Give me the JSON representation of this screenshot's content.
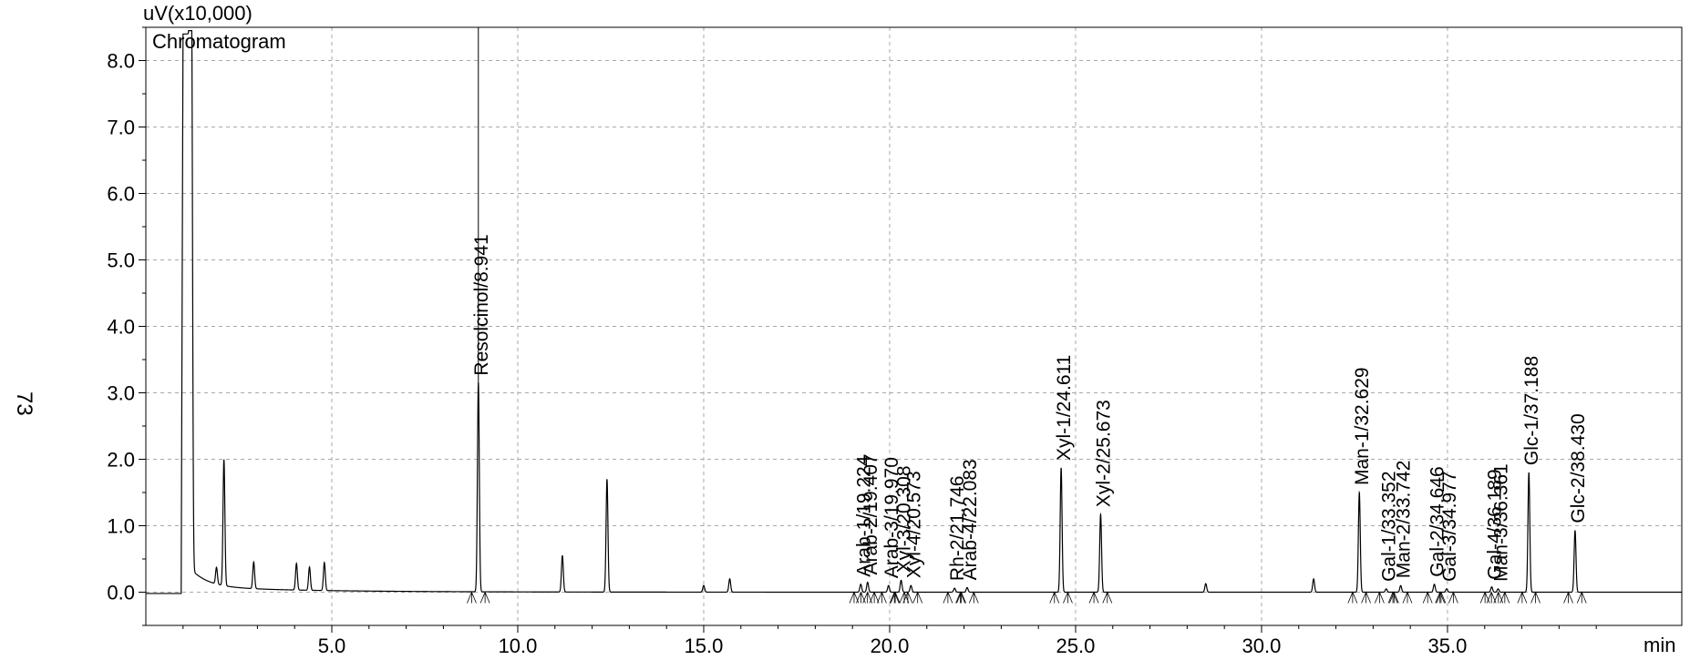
{
  "page_number": "73",
  "chart_data": {
    "type": "line",
    "title": "Chromatogram",
    "ylabel": "uV(x10,000)",
    "xlabel": "min",
    "xlim": [
      0,
      41.3
    ],
    "ylim": [
      -0.5,
      8.5
    ],
    "grid": true,
    "x_ticks": [
      5,
      10,
      15,
      20,
      25,
      30,
      35
    ],
    "x_tick_labels": [
      "5.0",
      "10.0",
      "15.0",
      "20.0",
      "25.0",
      "30.0",
      "35.0"
    ],
    "y_ticks": [
      0,
      1,
      2,
      3,
      4,
      5,
      6,
      7,
      8
    ],
    "y_tick_labels": [
      "0.0",
      "1.0",
      "2.0",
      "3.0",
      "4.0",
      "5.0",
      "6.0",
      "7.0",
      "8.0"
    ],
    "peaks": [
      {
        "label": "Resolcinol/8.941",
        "rt": 8.941,
        "height": 3.15
      },
      {
        "label": "Arab-1/19.224",
        "rt": 19.224,
        "height": 0.12
      },
      {
        "label": "Arab-2/19.407",
        "rt": 19.407,
        "height": 0.15
      },
      {
        "label": "Arab-3/19.970",
        "rt": 19.97,
        "height": 0.1
      },
      {
        "label": "Xyl-3/20.308",
        "rt": 20.308,
        "height": 0.18
      },
      {
        "label": "Xyl-4/20.573",
        "rt": 20.573,
        "height": 0.1
      },
      {
        "label": "Rh-2/21.746",
        "rt": 21.746,
        "height": 0.06
      },
      {
        "label": "Arab-4/22.083",
        "rt": 22.083,
        "height": 0.07
      },
      {
        "label": "Xyl-1/24.611",
        "rt": 24.611,
        "height": 1.87
      },
      {
        "label": "Xyl-2/25.673",
        "rt": 25.673,
        "height": 1.17
      },
      {
        "label": "Man-1/32.629",
        "rt": 32.629,
        "height": 1.5
      },
      {
        "label": "Gal-1/33.352",
        "rt": 33.352,
        "height": 0.05
      },
      {
        "label": "Man-2/33.742",
        "rt": 33.742,
        "height": 0.1
      },
      {
        "label": "Gal-2/34.646",
        "rt": 34.646,
        "height": 0.12
      },
      {
        "label": "Gal-3/34.977",
        "rt": 34.977,
        "height": 0.05
      },
      {
        "label": "Gal-4/36.189",
        "rt": 36.189,
        "height": 0.08
      },
      {
        "label": "Man-3/36.361",
        "rt": 36.361,
        "height": 0.05
      },
      {
        "label": "Glc-1/37.188",
        "rt": 37.188,
        "height": 1.8
      },
      {
        "label": "Glc-2/38.430",
        "rt": 38.43,
        "height": 0.93
      }
    ],
    "unlabeled_peaks": [
      {
        "rt": 1.23,
        "height": 8.4
      },
      {
        "rt": 1.9,
        "height": 0.25
      },
      {
        "rt": 2.1,
        "height": 1.9
      },
      {
        "rt": 2.9,
        "height": 0.4
      },
      {
        "rt": 4.05,
        "height": 0.4
      },
      {
        "rt": 4.4,
        "height": 0.35
      },
      {
        "rt": 4.8,
        "height": 0.42
      },
      {
        "rt": 11.2,
        "height": 0.55
      },
      {
        "rt": 12.4,
        "height": 1.7
      },
      {
        "rt": 15.0,
        "height": 0.1
      },
      {
        "rt": 15.7,
        "height": 0.2
      },
      {
        "rt": 28.5,
        "height": 0.13
      },
      {
        "rt": 31.4,
        "height": 0.2
      }
    ]
  }
}
